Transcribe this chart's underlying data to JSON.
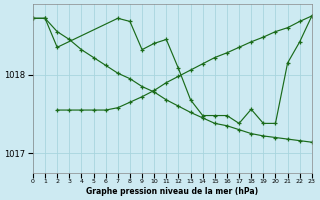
{
  "title": "Graphe pression niveau de la mer (hPa)",
  "bg_color": "#cdeaf2",
  "grid_color": "#a8d5de",
  "line_color": "#1a6b1a",
  "xlim": [
    0,
    23
  ],
  "ylim": [
    1016.75,
    1018.9
  ],
  "yticks": [
    1017,
    1018
  ],
  "xticks": [
    0,
    1,
    2,
    3,
    4,
    5,
    6,
    7,
    8,
    9,
    10,
    11,
    12,
    13,
    14,
    15,
    16,
    17,
    18,
    19,
    20,
    21,
    22,
    23
  ],
  "line1_x": [
    0,
    1,
    2,
    3,
    4,
    5,
    6,
    7,
    8,
    9,
    10,
    11,
    12,
    13,
    14,
    15,
    16,
    17,
    18,
    19,
    20,
    21,
    22,
    23
  ],
  "line1_y": [
    1018.72,
    1018.72,
    1018.55,
    1018.45,
    1018.32,
    1018.22,
    1018.12,
    1018.02,
    1017.95,
    1017.85,
    1017.78,
    1017.68,
    1017.6,
    1017.52,
    1017.45,
    1017.38,
    1017.35,
    1017.3,
    1017.25,
    1017.22,
    1017.2,
    1017.18,
    1017.16,
    1017.14
  ],
  "line2_x": [
    2,
    3,
    4,
    5,
    6,
    7,
    8,
    9,
    10,
    11,
    12,
    13,
    14,
    15,
    16,
    17,
    18,
    19,
    20,
    21,
    22,
    23
  ],
  "line2_y": [
    1017.55,
    1017.55,
    1017.55,
    1017.55,
    1017.55,
    1017.58,
    1017.65,
    1017.72,
    1017.8,
    1017.9,
    1017.98,
    1018.06,
    1018.14,
    1018.22,
    1018.28,
    1018.35,
    1018.42,
    1018.48,
    1018.55,
    1018.6,
    1018.68,
    1018.75
  ],
  "line3_x": [
    0,
    1,
    2,
    7,
    8,
    9,
    10,
    11,
    12,
    13,
    14,
    15,
    16,
    17,
    18,
    19,
    20,
    21,
    22,
    23
  ],
  "line3_y": [
    1018.72,
    1018.72,
    1018.35,
    1018.72,
    1018.68,
    1018.32,
    1018.4,
    1018.45,
    1018.08,
    1017.68,
    1017.48,
    1017.48,
    1017.48,
    1017.38,
    1017.56,
    1017.38,
    1017.38,
    1018.15,
    1018.42,
    1018.75
  ]
}
